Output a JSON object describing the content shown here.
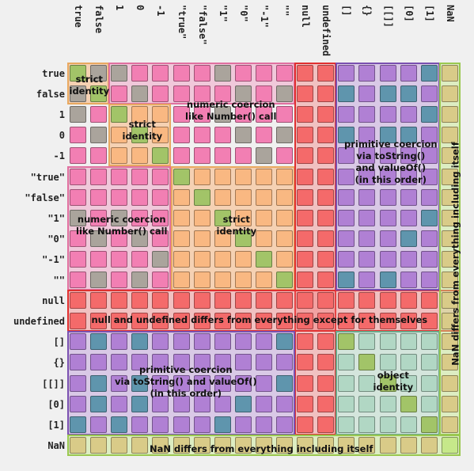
{
  "labels": [
    "true",
    "false",
    "1",
    "0",
    "-1",
    "\"true\"",
    "\"false\"",
    "\"1\"",
    "\"0\"",
    "\"-1\"",
    "\"\"",
    "null",
    "undefined",
    "[]",
    "{}",
    "[[]]",
    "[0]",
    "[1]",
    "NaN"
  ],
  "colors": {
    "green": "#a2c468",
    "gray": "#aaa49c",
    "pink": "#f27fb3",
    "orange": "#f9b882",
    "red": "#f46a6a",
    "purple": "#b080d4",
    "teal": "#5f95ad",
    "mint": "#b1d7c4",
    "khaki": "#d9cb88",
    "lime": "#c6e88a"
  },
  "annotations": {
    "strict_identity_top": "strict\nidentity",
    "strict_identity_mid": "strict\nidentity",
    "strict_identity_str": "strict\nidentity",
    "numeric_top": "numeric coercion\nlike Number() call",
    "numeric_left": "numeric coercion\nlike Number() call",
    "primitive_right": "primitive coercion\nvia toString()\nand valueOf()\n(in this order)",
    "primitive_bottom": "primitive coercion\nvia toString() and valueOf()\n(in this order)",
    "null_undefined": "null and undefined differs from everything except for themselves",
    "object_identity": "object\nidentity",
    "nan_bottom": "NaN differs from everything including itself",
    "nan_right": "NaN differs from everything including itself"
  }
}
